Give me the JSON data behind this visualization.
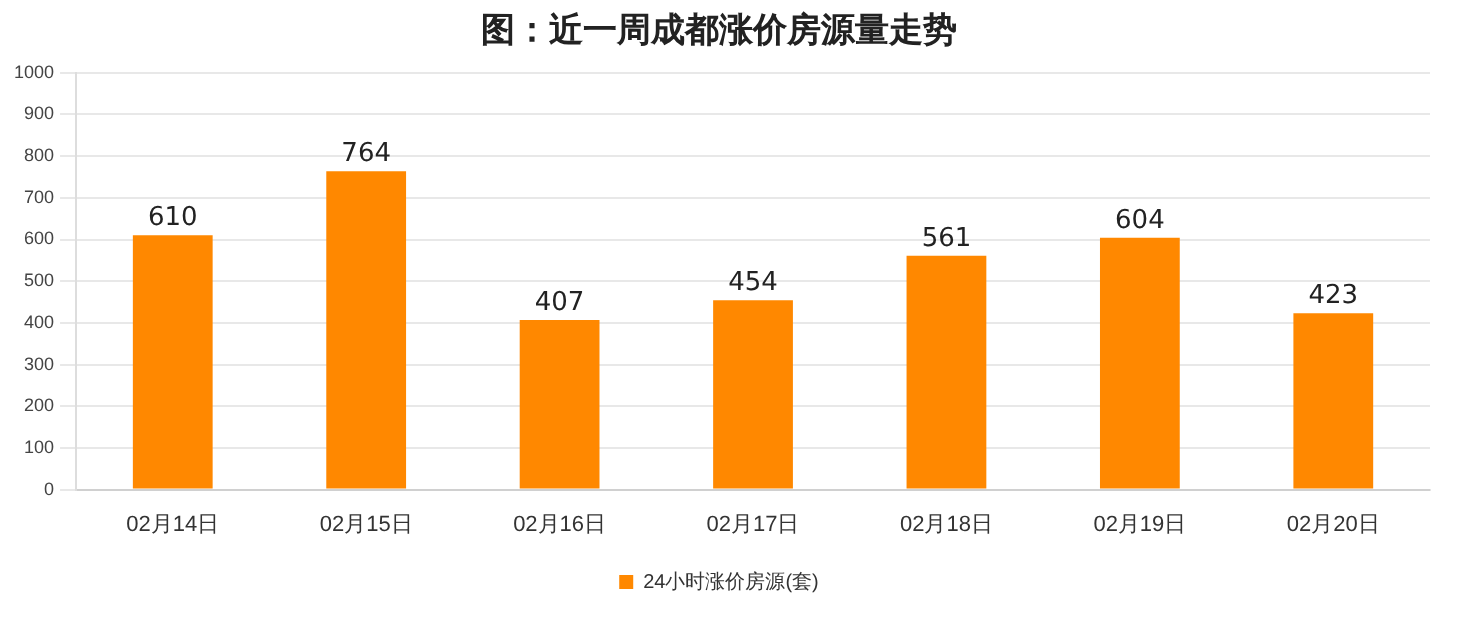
{
  "chart_data": {
    "type": "bar",
    "title": "图：近一周成都涨价房源量走势",
    "categories": [
      "02月14日",
      "02月15日",
      "02月16日",
      "02月17日",
      "02月18日",
      "02月19日",
      "02月20日"
    ],
    "series": [
      {
        "name": "24小时涨价房源(套)",
        "color": "#ff8800",
        "values": [
          610,
          764,
          407,
          454,
          561,
          604,
          423
        ]
      }
    ],
    "ylim": [
      0,
      1000
    ],
    "yticks": [
      0,
      100,
      200,
      300,
      400,
      500,
      600,
      700,
      800,
      900,
      1000
    ],
    "grid": "y",
    "legend": "bottom",
    "data_labels": true
  }
}
